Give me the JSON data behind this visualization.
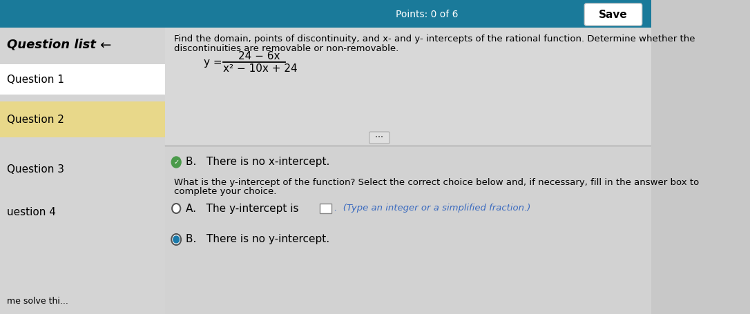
{
  "bg_top": "#1a7a9a",
  "bg_left_panel": "#d4d4d4",
  "bg_highlight": "#e8d88a",
  "bg_main": "#c8c8c8",
  "bg_content": "#d0d0d0",
  "points_text": "Points: 0 of 6",
  "save_text": "Save",
  "question_list_text": "Question list",
  "question1_text": "Question 1",
  "question2_text": "Question 2",
  "question3_text": "Question 3",
  "question4_text": "uestion 4",
  "instruction_line1": "Find the domain, points of discontinuity, and x- and y- intercepts of the rational function. Determine whether the",
  "instruction_line2": "discontinuities are removable or non-removable.",
  "formula_num": "24 − 6x",
  "formula_den": "x² − 10x + 24",
  "question2_answer": "B.   There is no x-intercept.",
  "yintercept_question_line1": "What is the y-intercept of the function? Select the correct choice below and, if necessary, fill in the answer box to",
  "yintercept_question_line2": "complete your choice.",
  "optionA_text": "A.   The y-intercept is",
  "optionA_hint": "(Type an integer or a simplified fraction.)",
  "optionB_text": "B.   There is no y-intercept.",
  "bottom_text": "me solve thi..."
}
